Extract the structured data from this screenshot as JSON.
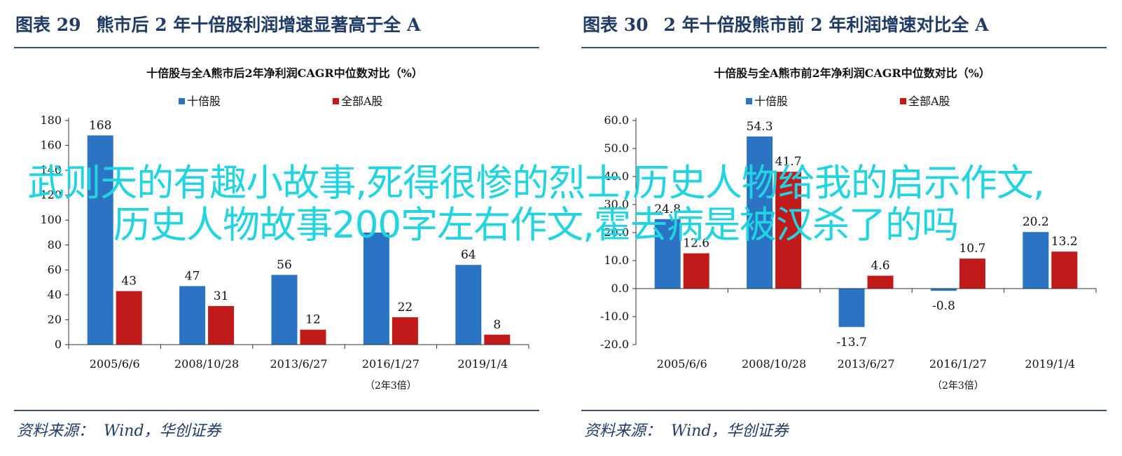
{
  "figures": [
    {
      "number_label": "图表 29",
      "caption": "熊市后 2 年十倍股利润增速显著高于全 A",
      "source_label": "资料来源：",
      "source_value": "Wind，华创证券"
    },
    {
      "number_label": "图表 30",
      "caption": "2 年十倍股熊市前 2 年利润增速对比全 A",
      "source_label": "资料来源：",
      "source_value": "Wind，华创证券"
    }
  ],
  "chart_data": [
    {
      "type": "bar",
      "title": "十倍股与全A熊市后2年净利润CAGR中位数对比（%）",
      "categories": [
        "2005/6/6",
        "2008/10/28",
        "2013/6/27",
        "2016/1/27",
        "2019/1/4"
      ],
      "x_note": "（2年3倍）",
      "series": [
        {
          "name": "十倍股",
          "values": [
            168,
            47,
            56,
            90,
            64
          ],
          "labels": [
            "168",
            "47",
            "56",
            "",
            "64"
          ],
          "color": "#2b74c4"
        },
        {
          "name": "全部A股",
          "values": [
            43,
            31,
            12,
            22,
            8
          ],
          "labels": [
            "43",
            "31",
            "12",
            "22",
            "8"
          ],
          "color": "#c01a1a"
        }
      ],
      "yticks": [
        "0",
        "20",
        "40",
        "60",
        "80",
        "100",
        "120",
        "140",
        "160",
        "180"
      ],
      "ylim": [
        0,
        180
      ],
      "legend_position": "top"
    },
    {
      "type": "bar",
      "title": "十倍股与全A熊市前2年净利润CAGR中位数对比（%）",
      "categories": [
        "2005/6/6",
        "2008/10/28",
        "2013/6/27",
        "2016/1/27",
        "2019/1/4"
      ],
      "x_note": "（2年3倍）",
      "series": [
        {
          "name": "十倍股",
          "values": [
            24.8,
            54.3,
            -13.7,
            -0.8,
            20.2
          ],
          "labels": [
            "24.8",
            "54.3",
            "-13.7",
            "-0.8",
            "20.2"
          ],
          "color": "#2b74c4"
        },
        {
          "name": "全部A股",
          "values": [
            12.6,
            41.7,
            4.6,
            10.7,
            13.2
          ],
          "labels": [
            "12.6",
            "41.7",
            "4.6",
            "10.7",
            "13.2"
          ],
          "color": "#c01a1a"
        }
      ],
      "yticks": [
        "-20.0",
        "-10.0",
        "0.0",
        "10.0",
        "20.0",
        "30.0",
        "40.0",
        "50.0",
        "60.0"
      ],
      "ylim": [
        -20,
        60
      ],
      "legend_position": "top"
    }
  ],
  "overlay_text": "武则天的有趣小故事,死得很惨的烈士,历史人物给我的启示作文,历史人物故事200字左右作文,霍去病是被汉杀了的吗"
}
